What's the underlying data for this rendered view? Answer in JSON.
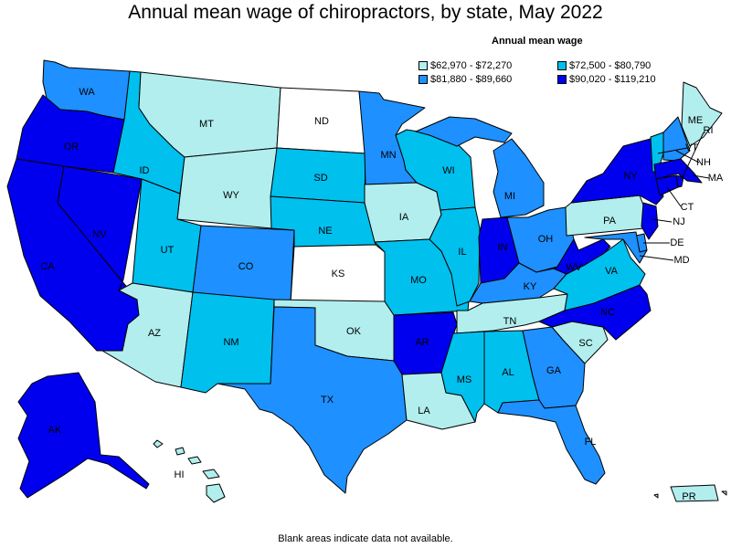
{
  "title": "Annual mean wage of chiropractors, by state, May 2022",
  "legend": {
    "title": "Annual mean wage",
    "items": [
      {
        "label": "$62,970 - $72,270",
        "color": "#b2eeee"
      },
      {
        "label": "$72,500 - $80,790",
        "color": "#00c0ee"
      },
      {
        "label": "$81,880 - $89,660",
        "color": "#1e90ff"
      },
      {
        "label": "$90,020 - $119,210",
        "color": "#0000ee"
      }
    ]
  },
  "footnote": "Blank areas indicate data not available.",
  "colors": {
    "nodata": "#ffffff",
    "border": "#000000"
  },
  "states": [
    {
      "abbr": "WA",
      "class": 2
    },
    {
      "abbr": "OR",
      "class": 3
    },
    {
      "abbr": "CA",
      "class": 3
    },
    {
      "abbr": "NV",
      "class": 3
    },
    {
      "abbr": "ID",
      "class": 1
    },
    {
      "abbr": "MT",
      "class": 0
    },
    {
      "abbr": "WY",
      "class": 0
    },
    {
      "abbr": "UT",
      "class": 1
    },
    {
      "abbr": "AZ",
      "class": 0
    },
    {
      "abbr": "CO",
      "class": 2
    },
    {
      "abbr": "NM",
      "class": 1
    },
    {
      "abbr": "ND",
      "class": null
    },
    {
      "abbr": "SD",
      "class": 1
    },
    {
      "abbr": "NE",
      "class": 1
    },
    {
      "abbr": "KS",
      "class": null
    },
    {
      "abbr": "OK",
      "class": 0
    },
    {
      "abbr": "TX",
      "class": 2
    },
    {
      "abbr": "MN",
      "class": 2
    },
    {
      "abbr": "IA",
      "class": 0
    },
    {
      "abbr": "MO",
      "class": 1
    },
    {
      "abbr": "AR",
      "class": 3
    },
    {
      "abbr": "LA",
      "class": 0
    },
    {
      "abbr": "WI",
      "class": 1
    },
    {
      "abbr": "IL",
      "class": 1
    },
    {
      "abbr": "MI",
      "class": 2
    },
    {
      "abbr": "IN",
      "class": 3
    },
    {
      "abbr": "OH",
      "class": 2
    },
    {
      "abbr": "KY",
      "class": 2
    },
    {
      "abbr": "TN",
      "class": 0
    },
    {
      "abbr": "MS",
      "class": 1
    },
    {
      "abbr": "AL",
      "class": 1
    },
    {
      "abbr": "GA",
      "class": 2
    },
    {
      "abbr": "FL",
      "class": 2
    },
    {
      "abbr": "SC",
      "class": 0
    },
    {
      "abbr": "NC",
      "class": 3
    },
    {
      "abbr": "VA",
      "class": 1
    },
    {
      "abbr": "WV",
      "class": 3
    },
    {
      "abbr": "PA",
      "class": 0
    },
    {
      "abbr": "NY",
      "class": 3
    },
    {
      "abbr": "ME",
      "class": 0
    },
    {
      "abbr": "VT",
      "class": 1
    },
    {
      "abbr": "NH",
      "class": 2
    },
    {
      "abbr": "MA",
      "class": 3
    },
    {
      "abbr": "CT",
      "class": 3
    },
    {
      "abbr": "RI",
      "class": 3
    },
    {
      "abbr": "NJ",
      "class": 3
    },
    {
      "abbr": "DE",
      "class": 2
    },
    {
      "abbr": "MD",
      "class": 2
    },
    {
      "abbr": "AK",
      "class": 3
    },
    {
      "abbr": "HI",
      "class": 0
    },
    {
      "abbr": "PR",
      "class": 0
    }
  ]
}
